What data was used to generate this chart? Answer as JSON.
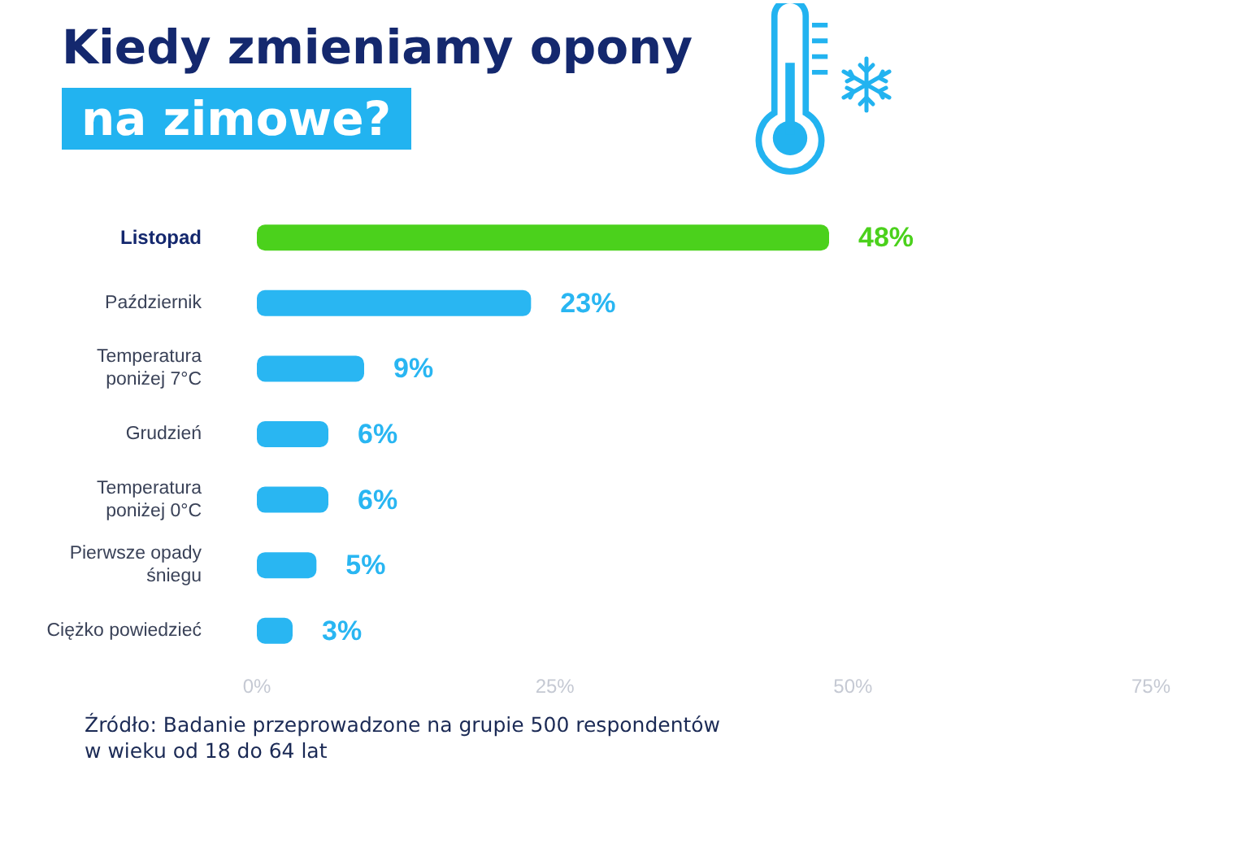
{
  "chart_data": {
    "type": "bar",
    "orientation": "horizontal",
    "title": "Kiedy zmieniamy opony\nna zimowe?",
    "categories": [
      "Listopad",
      "Październik",
      "Temperatura\nponiżej 7°C",
      "Grudzień",
      "Temperatura\nponiżej 0°C",
      "Pierwsze opady\nśniegu",
      "Ciężko powiedzieć"
    ],
    "values": [
      48,
      23,
      9,
      6,
      6,
      5,
      3
    ],
    "colors": [
      "#4bd11c",
      "#29b6f2",
      "#29b6f2",
      "#29b6f2",
      "#29b6f2",
      "#29b6f2",
      "#29b6f2"
    ],
    "value_labels": [
      "48%",
      "23%",
      "9%",
      "6%",
      "6%",
      "5%",
      "3%"
    ],
    "xlim": [
      0,
      75
    ],
    "xticks": [
      {
        "value": 0,
        "label": "0%"
      },
      {
        "value": 25,
        "label": "25%"
      },
      {
        "value": 50,
        "label": "50%"
      },
      {
        "value": 75,
        "label": "75%"
      }
    ],
    "grid": false,
    "annotations": [
      "Źródło: Badanie przeprowadzone na grupie 500 respondentów\nw wieku od 18 do 64 lat"
    ]
  }
}
